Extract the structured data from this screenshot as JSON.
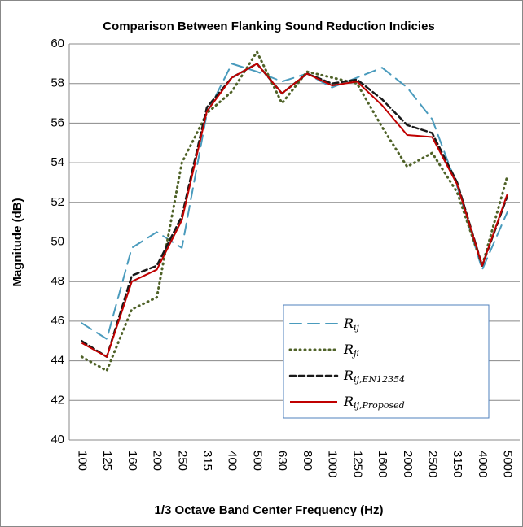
{
  "chart_data": {
    "type": "line",
    "title": "Comparison Between Flanking Sound Reduction Indicies",
    "x_label": "1/3 Octave Band Center Frequency (Hz)",
    "y_label": "Magnitude (dB)",
    "categories": [
      "100",
      "125",
      "160",
      "200",
      "250",
      "315",
      "400",
      "500",
      "630",
      "800",
      "1000",
      "1250",
      "1600",
      "2000",
      "2500",
      "3150",
      "4000",
      "5000"
    ],
    "ylim": [
      40,
      60
    ],
    "yticks": [
      40,
      42,
      44,
      46,
      48,
      50,
      52,
      54,
      56,
      58,
      60
    ],
    "grid": true,
    "series": [
      {
        "name": "Rij",
        "color": "#4a9bbd",
        "dash": "14,8",
        "width": 2,
        "values": [
          45.9,
          45.1,
          49.7,
          50.5,
          49.7,
          56.5,
          59.0,
          58.6,
          58.1,
          58.5,
          57.8,
          58.3,
          58.8,
          57.8,
          56.2,
          52.8,
          48.6,
          51.5
        ]
      },
      {
        "name": "Rji",
        "color": "#4f6228",
        "dash": "1,5",
        "width": 3,
        "values": [
          44.2,
          43.5,
          46.6,
          47.2,
          54.0,
          56.5,
          57.6,
          59.6,
          57.0,
          58.6,
          58.3,
          58.0,
          55.8,
          53.8,
          54.5,
          52.5,
          48.8,
          53.3
        ]
      },
      {
        "name": "Rij,EN12354",
        "color": "#1a1a1a",
        "dash": "7,4",
        "width": 2.5,
        "values": [
          45.0,
          44.2,
          48.3,
          48.8,
          51.3,
          56.8,
          58.3,
          59.0,
          57.5,
          58.5,
          58.0,
          58.2,
          57.2,
          55.9,
          55.5,
          53.0,
          48.8,
          52.3
        ]
      },
      {
        "name": "Rij,Proposed",
        "color": "#c00000",
        "dash": "none",
        "width": 2,
        "values": [
          44.9,
          44.2,
          48.0,
          48.6,
          51.1,
          56.6,
          58.3,
          59.0,
          57.5,
          58.5,
          57.9,
          58.1,
          56.9,
          55.4,
          55.3,
          52.9,
          48.8,
          52.4
        ]
      }
    ]
  }
}
